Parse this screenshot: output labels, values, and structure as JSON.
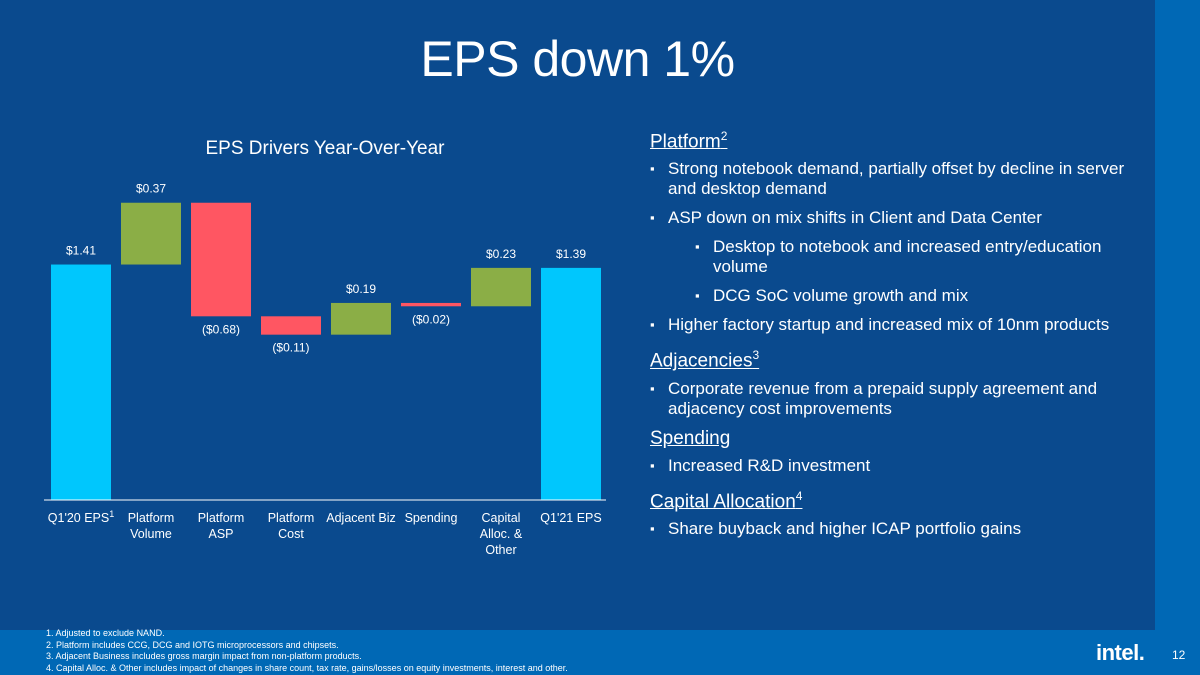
{
  "title": "EPS down 1%",
  "chart_data": {
    "type": "bar",
    "subtype": "waterfall",
    "title": "EPS Drivers Year-Over-Year",
    "categories": [
      "Q1'20 EPS",
      "Platform Volume",
      "Platform ASP",
      "Platform Cost",
      "Adjacent Biz",
      "Spending",
      "Capital Alloc & Other",
      "Q1'21 EPS"
    ],
    "category_lines": [
      [
        "Q1'20 EPS"
      ],
      [
        "Platform",
        "Volume"
      ],
      [
        "Platform",
        "ASP"
      ],
      [
        "Platform",
        "Cost"
      ],
      [
        "Adjacent Biz"
      ],
      [
        "Spending"
      ],
      [
        "Capital",
        "Alloc. &",
        "Other"
      ],
      [
        "Q1'21 EPS"
      ]
    ],
    "category_sup": [
      "1",
      "",
      "",
      "",
      "",
      "",
      "",
      ""
    ],
    "values": [
      1.41,
      0.37,
      -0.68,
      -0.11,
      0.19,
      -0.02,
      0.23,
      1.39
    ],
    "labels": [
      "$1.41",
      "$0.37",
      "($0.68)",
      "($0.11)",
      "$0.19",
      "($0.02)",
      "$0.23",
      "$1.39"
    ],
    "kinds": [
      "total",
      "delta",
      "delta",
      "delta",
      "delta",
      "delta",
      "delta",
      "total"
    ],
    "colors": {
      "total": "#00C7FD",
      "increase": "#8BAE46",
      "decrease": "#FF5662",
      "axis": "#FFFFFF"
    }
  },
  "sections": [
    {
      "heading": "Platform",
      "sup": "2",
      "bullets": [
        {
          "text": "Strong notebook demand, partially offset by decline in server and desktop demand",
          "level": 1
        },
        {
          "text": "ASP down on mix shifts in Client and Data Center",
          "level": 1
        },
        {
          "text": "Desktop to notebook and increased entry/education volume",
          "level": 2
        },
        {
          "text": "DCG SoC volume growth and mix",
          "level": 2
        },
        {
          "text": "Higher factory startup and increased mix of 10nm products",
          "level": 1
        }
      ]
    },
    {
      "heading": "Adjacencies",
      "sup": "3",
      "bullets": [
        {
          "text": "Corporate revenue from a prepaid supply agreement and adjacency cost improvements",
          "level": 1
        }
      ]
    },
    {
      "heading": "Spending",
      "sup": "",
      "bullets": [
        {
          "text": "Increased R&D investment",
          "level": 1
        }
      ]
    },
    {
      "heading": "Capital Allocation",
      "sup": "4",
      "bullets": [
        {
          "text": "Share buyback and higher ICAP portfolio gains",
          "level": 1
        }
      ]
    }
  ],
  "footnotes": [
    "1. Adjusted to exclude NAND.",
    "2. Platform includes CCG, DCG and IOTG microprocessors and chipsets.",
    "3. Adjacent Business includes gross margin impact from non-platform products.",
    "4. Capital Alloc. & Other includes impact of changes in share count, tax rate, gains/losses on equity investments, interest and other."
  ],
  "logo": "intel.",
  "page_number": "12"
}
